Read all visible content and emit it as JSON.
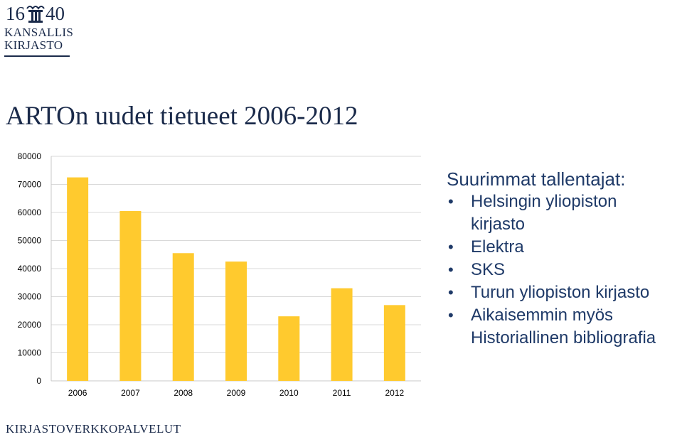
{
  "logo": {
    "year_left": "16",
    "year_right": "40",
    "name_line1": "KANSALLIS",
    "name_line2": "KIRJASTO",
    "emblem_icon": "column-capital-icon"
  },
  "title": "ARTOn uudet tietueet 2006-2012",
  "chart_data": {
    "type": "bar",
    "categories": [
      "2006",
      "2007",
      "2008",
      "2009",
      "2010",
      "2011",
      "2012"
    ],
    "values": [
      72500,
      60500,
      45500,
      42500,
      23000,
      33000,
      27000
    ],
    "yticks": [
      0,
      10000,
      20000,
      30000,
      40000,
      50000,
      60000,
      70000,
      80000
    ],
    "ylim": [
      0,
      80000
    ],
    "bar_color": "#ffca2e",
    "grid": true,
    "legend": false,
    "title": "",
    "xlabel": "",
    "ylabel": ""
  },
  "notes": {
    "heading": "Suurimmat tallentajat:",
    "items": [
      {
        "line1": "Helsingin yliopiston",
        "line2": "kirjasto"
      },
      {
        "line1": "Elektra",
        "line2": ""
      },
      {
        "line1": "SKS",
        "line2": ""
      },
      {
        "line1": "Turun yliopiston kirjasto",
        "line2": ""
      },
      {
        "line1": "Aikaisemmin myös",
        "line2": "Historiallinen bibliografia"
      }
    ],
    "bullet": "•"
  },
  "footer": "KIRJASTOVERKKOPALVELUT"
}
